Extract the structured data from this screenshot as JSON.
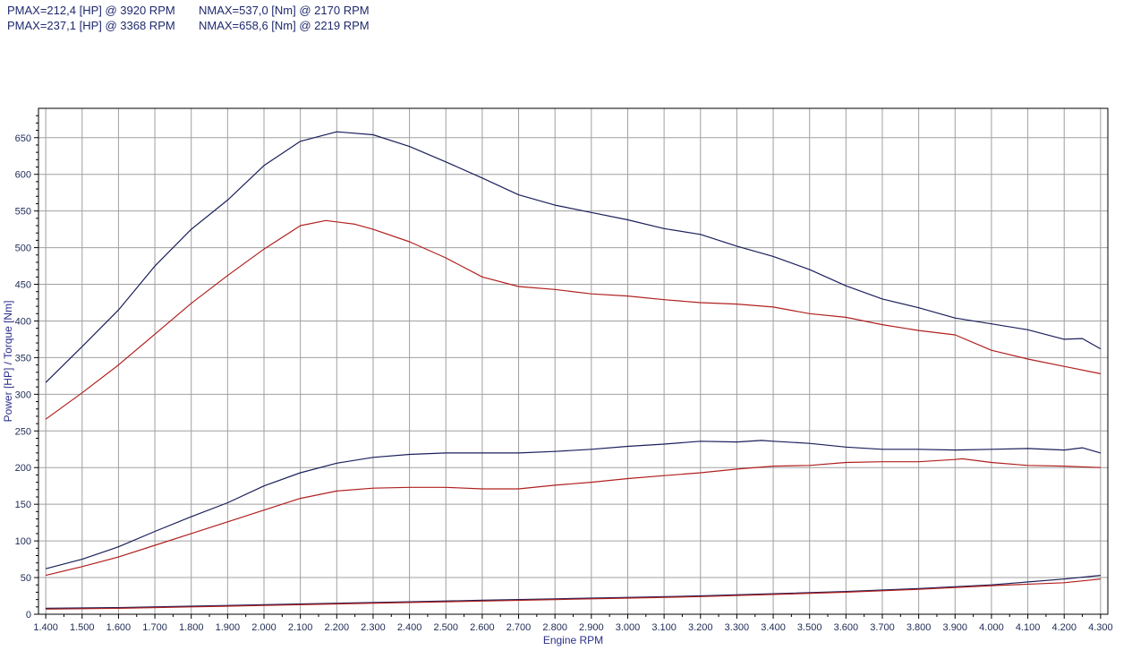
{
  "header": {
    "row1": {
      "pmax": "PMAX=212,4 [HP] @ 3920 RPM",
      "nmax": "NMAX=537,0 [Nm] @ 2170 RPM"
    },
    "row2": {
      "pmax": "PMAX=237,1 [HP] @ 3368 RPM",
      "nmax": "NMAX=658,6 [Nm] @ 2219 RPM"
    }
  },
  "colors": {
    "stock": "#b0201e",
    "tuned": "#1a1f5a",
    "grid": "#a0a0a0",
    "frame": "#000000"
  },
  "chart_data": {
    "type": "line",
    "xlabel": "Engine RPM",
    "ylabel": "Power [HP] / Torque [Nm]",
    "xlim": [
      1380,
      4320
    ],
    "ylim": [
      0,
      690
    ],
    "grid": true,
    "x_ticks": [
      1400,
      1500,
      1600,
      1700,
      1800,
      1900,
      2000,
      2100,
      2200,
      2300,
      2400,
      2500,
      2600,
      2700,
      2800,
      2900,
      3000,
      3100,
      3200,
      3300,
      3400,
      3500,
      3600,
      3700,
      3800,
      3900,
      4000,
      4100,
      4200,
      4300
    ],
    "x_tick_labels": [
      "1.400",
      "1.500",
      "1.600",
      "1.700",
      "1.800",
      "1.900",
      "2.000",
      "2.100",
      "2.200",
      "2.300",
      "2.400",
      "2.500",
      "2.600",
      "2.700",
      "2.800",
      "2.900",
      "3.000",
      "3.100",
      "3.200",
      "3.300",
      "3.400",
      "3.500",
      "3.600",
      "3.700",
      "3.800",
      "3.900",
      "4.000",
      "4.100",
      "4.200",
      "4.300"
    ],
    "y_ticks": [
      0,
      50,
      100,
      150,
      200,
      250,
      300,
      350,
      400,
      450,
      500,
      550,
      600,
      650
    ],
    "series": [
      {
        "color": "#1a1f5a",
        "kind": "torque",
        "x": [
          1400,
          1500,
          1600,
          1700,
          1800,
          1900,
          2000,
          2100,
          2200,
          2300,
          2400,
          2500,
          2600,
          2700,
          2800,
          2900,
          3000,
          3100,
          3200,
          3300,
          3400,
          3500,
          3600,
          3700,
          3800,
          3900,
          4000,
          4100,
          4200,
          4250,
          4300
        ],
        "y": [
          316,
          365,
          415,
          475,
          525,
          565,
          612,
          645,
          658,
          654,
          638,
          617,
          595,
          572,
          558,
          548,
          538,
          526,
          518,
          502,
          488,
          470,
          448,
          430,
          418,
          404,
          396,
          388,
          375,
          376,
          362
        ]
      },
      {
        "color": "#b0201e",
        "kind": "torque",
        "x": [
          1400,
          1500,
          1600,
          1700,
          1800,
          1900,
          2000,
          2100,
          2170,
          2250,
          2300,
          2400,
          2500,
          2600,
          2700,
          2800,
          2900,
          3000,
          3100,
          3200,
          3300,
          3400,
          3500,
          3600,
          3700,
          3800,
          3900,
          4000,
          4100,
          4200,
          4300
        ],
        "y": [
          266,
          302,
          340,
          382,
          424,
          462,
          498,
          530,
          537,
          532,
          525,
          508,
          486,
          460,
          447,
          443,
          437,
          434,
          429,
          425,
          423,
          419,
          410,
          405,
          395,
          387,
          381,
          360,
          348,
          338,
          328
        ]
      },
      {
        "color": "#1a1f5a",
        "kind": "power",
        "x": [
          1400,
          1500,
          1600,
          1700,
          1800,
          1900,
          2000,
          2100,
          2200,
          2300,
          2400,
          2500,
          2600,
          2700,
          2800,
          2900,
          3000,
          3100,
          3200,
          3300,
          3368,
          3400,
          3500,
          3600,
          3700,
          3800,
          3900,
          4000,
          4100,
          4200,
          4250,
          4300
        ],
        "y": [
          62,
          75,
          92,
          113,
          133,
          152,
          175,
          193,
          206,
          214,
          218,
          220,
          220,
          220,
          222,
          225,
          229,
          232,
          236,
          235,
          237,
          236,
          233,
          228,
          225,
          225,
          224,
          225,
          226,
          224,
          227,
          220
        ]
      },
      {
        "color": "#b0201e",
        "kind": "power",
        "x": [
          1400,
          1500,
          1600,
          1700,
          1800,
          1900,
          2000,
          2100,
          2200,
          2300,
          2400,
          2500,
          2600,
          2700,
          2800,
          2900,
          3000,
          3100,
          3200,
          3300,
          3400,
          3500,
          3600,
          3700,
          3800,
          3900,
          3920,
          4000,
          4100,
          4200,
          4300
        ],
        "y": [
          53,
          65,
          78,
          94,
          110,
          126,
          142,
          158,
          168,
          172,
          173,
          173,
          171,
          171,
          176,
          180,
          185,
          189,
          193,
          198,
          202,
          203,
          207,
          208,
          208,
          211,
          212,
          207,
          203,
          202,
          200
        ]
      },
      {
        "color": "#1a1f5a",
        "kind": "loss",
        "x": [
          1400,
          1600,
          1800,
          2000,
          2200,
          2400,
          2600,
          2800,
          3000,
          3200,
          3400,
          3600,
          3800,
          4000,
          4200,
          4300
        ],
        "y": [
          8,
          9,
          11,
          13,
          15,
          17,
          19,
          21,
          23,
          25,
          28,
          31,
          35,
          40,
          48,
          53
        ]
      },
      {
        "color": "#b0201e",
        "kind": "loss",
        "x": [
          1400,
          1600,
          1800,
          2000,
          2200,
          2400,
          2600,
          2800,
          3000,
          3200,
          3400,
          3600,
          3800,
          4000,
          4200,
          4300
        ],
        "y": [
          7,
          8,
          10,
          12,
          14,
          16,
          18,
          20,
          22,
          24,
          27,
          30,
          34,
          39,
          43,
          48
        ]
      }
    ]
  }
}
